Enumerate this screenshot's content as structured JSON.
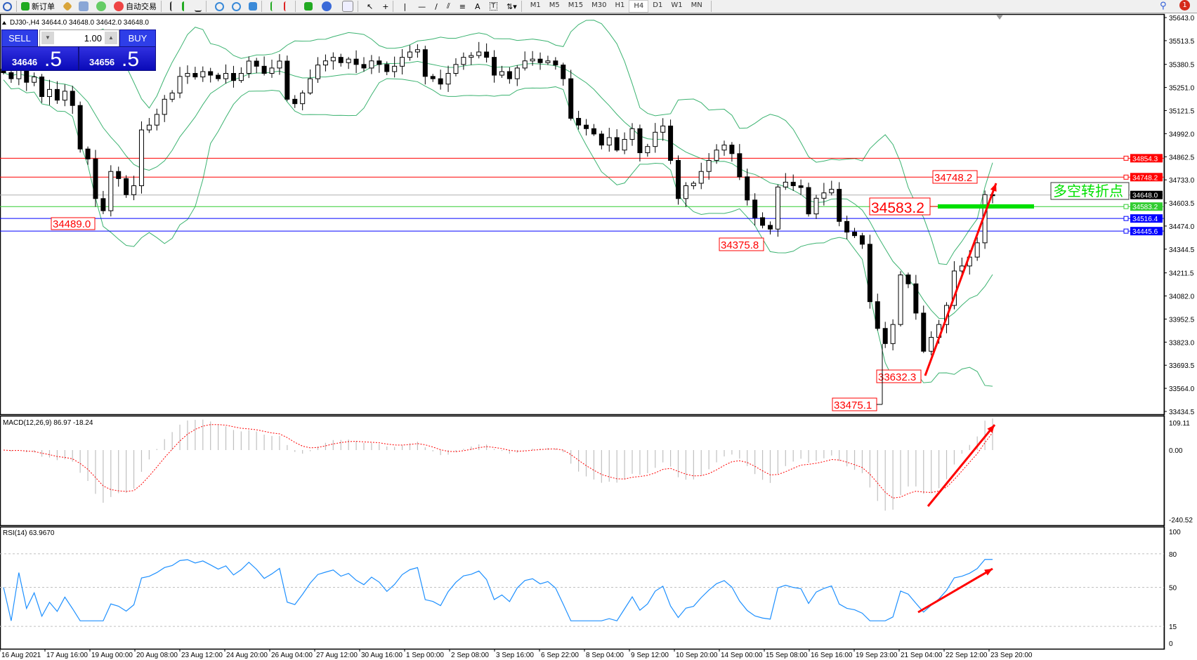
{
  "toolbar": {
    "new_order": "新订单",
    "auto_trading": "自动交易",
    "timeframes": [
      "M1",
      "M5",
      "M15",
      "M30",
      "H1",
      "H4",
      "D1",
      "W1",
      "MN"
    ],
    "active_timeframe": "H4",
    "notification_count": "1"
  },
  "chart_header": "DJ30-,H4  34644.0 34648.0 34642.0 34648.0",
  "trade_panel": {
    "sell_label": "SELL",
    "buy_label": "BUY",
    "lot": "1.00",
    "bid_main": "34646",
    "bid_frac": ".5",
    "ask_main": "34656",
    "ask_frac": ".5"
  },
  "colors": {
    "bull_bear_candles": "#000000",
    "bands": "#3cb371",
    "macd_hist": "#c0c0c0",
    "macd_signal": "#ff0000",
    "rsi": "#1e90ff",
    "annotation": "#ff0000",
    "green_line": "#00e000",
    "blue_line": "#0000ff"
  },
  "price_axis": {
    "labels": [
      "35643.0",
      "35513.5",
      "35380.5",
      "35251.0",
      "35121.5",
      "34992.0",
      "34862.5",
      "34733.0",
      "34603.5",
      "34474.0",
      "34344.5",
      "34211.5",
      "34082.0",
      "33952.5",
      "33823.0",
      "33693.5",
      "33564.0",
      "33434.5"
    ],
    "range": [
      33434.5,
      35643.0
    ]
  },
  "horizontal_lines": [
    {
      "price": 34854.3,
      "label": "34854.3",
      "color": "#ff0000"
    },
    {
      "price": 34748.2,
      "label": "34748.2",
      "color": "#ff0000"
    },
    {
      "price": 34648.0,
      "label": "34648.0",
      "color": "#000000"
    },
    {
      "price": 34583.2,
      "label": "34583.2",
      "color": "#32cd32"
    },
    {
      "price": 34516.4,
      "label": "34516.4",
      "color": "#0000ff"
    },
    {
      "price": 34445.6,
      "label": "34445.6",
      "color": "#0000ff"
    }
  ],
  "annotations": {
    "low_1": "34489.0",
    "low_2": "34375.8",
    "high_mark": "34748.2",
    "pivot": "34583.2",
    "low_3": "33632.3",
    "low_4": "33475.1",
    "pivot_text": "多空转折点"
  },
  "macd": {
    "label": "MACD(12,26,9) 86.97 -18.24",
    "axis": [
      "109.11",
      "0.00",
      "-240.52"
    ],
    "range": [
      -240.52,
      109.11
    ]
  },
  "rsi": {
    "label": "RSI(14) 63.9670",
    "axis": [
      "100",
      "80",
      "50",
      "15",
      "0"
    ],
    "levels": [
      80,
      50,
      15
    ]
  },
  "time_axis": [
    "16 Aug 2021",
    "17 Aug 16:00",
    "19 Aug 00:00",
    "20 Aug 08:00",
    "23 Aug 12:00",
    "24 Aug 20:00",
    "26 Aug 04:00",
    "27 Aug 12:00",
    "30 Aug 16:00",
    "1 Sep 00:00",
    "2 Sep 08:00",
    "3 Sep 16:00",
    "6 Sep 22:00",
    "8 Sep 04:00",
    "9 Sep 12:00",
    "10 Sep 20:00",
    "14 Sep 00:00",
    "15 Sep 08:00",
    "16 Sep 16:00",
    "19 Sep 23:00",
    "21 Sep 04:00",
    "22 Sep 12:00",
    "23 Sep 20:00"
  ],
  "chart_data": {
    "type": "candlestick",
    "symbol": "DJ30-",
    "timeframe": "H4",
    "closes": [
      35334,
      35300,
      35350,
      35280,
      35310,
      35200,
      35240,
      35180,
      35230,
      35150,
      34906,
      34850,
      34628,
      34560,
      34780,
      34740,
      34650,
      34700,
      35013,
      35040,
      35100,
      35185,
      35220,
      35313,
      35330,
      35310,
      35340,
      35320,
      35300,
      35330,
      35290,
      35330,
      35399,
      35370,
      35330,
      35360,
      35399,
      35185,
      35160,
      35220,
      35300,
      35377,
      35400,
      35420,
      35390,
      35410,
      35380,
      35360,
      35400,
      35380,
      35340,
      35370,
      35420,
      35450,
      35463,
      35313,
      35300,
      35270,
      35330,
      35380,
      35420,
      35430,
      35450,
      35420,
      35320,
      35340,
      35300,
      35360,
      35400,
      35410,
      35390,
      35400,
      35377,
      35300,
      35078,
      35040,
      35020,
      34990,
      34928,
      34970,
      34900,
      34960,
      35020,
      34885,
      34920,
      35000,
      35035,
      34842,
      34628,
      34700,
      34714,
      34780,
      34842,
      34900,
      34928,
      34880,
      34750,
      34620,
      34521,
      34478,
      34457,
      34693,
      34720,
      34700,
      34690,
      34542,
      34630,
      34660,
      34680,
      34500,
      34440,
      34420,
      34372,
      34050,
      33900,
      33815,
      33922,
      34200,
      34150,
      33986,
      33772,
      33850,
      33922,
      34029,
      34222,
      34250,
      34300,
      34380,
      34650,
      34648
    ]
  }
}
